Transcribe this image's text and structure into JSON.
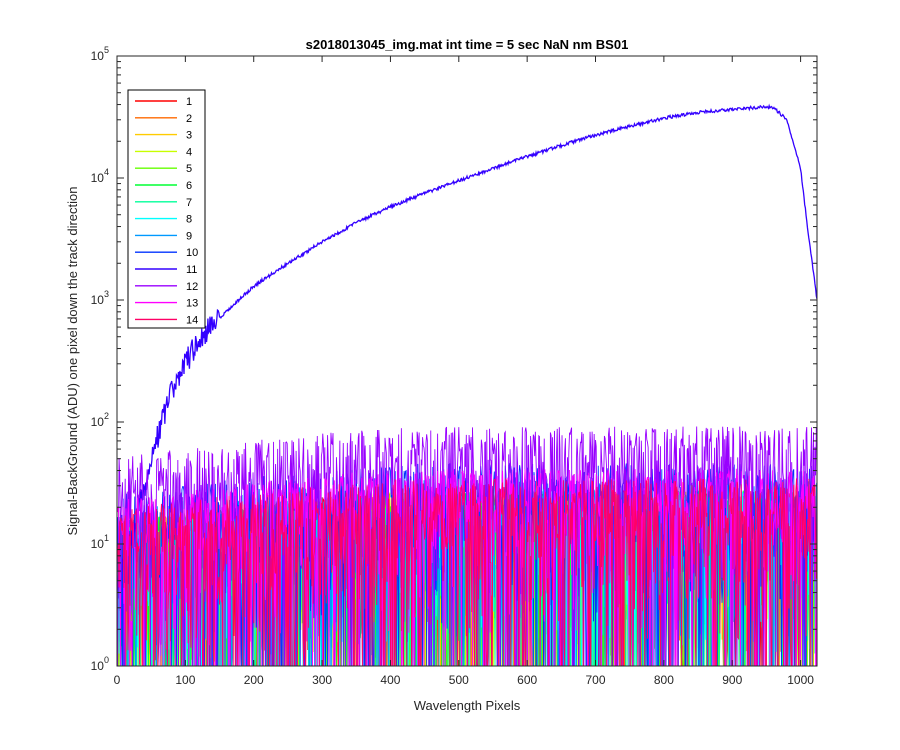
{
  "chart_data": {
    "type": "line",
    "title": "s2018013045_img.mat int time = 5 sec  NaN nm BS01",
    "xlabel": "Wavelength Pixels",
    "ylabel": "Signal-BackGround (ADU) one pixel down the track direction",
    "xlim": [
      0,
      1024
    ],
    "ylim": [
      1,
      100000
    ],
    "yscale": "log",
    "grid": false,
    "legend_position": "top-left",
    "x_ticks": [
      "0",
      "100",
      "200",
      "300",
      "400",
      "500",
      "600",
      "700",
      "800",
      "900",
      "1000"
    ],
    "y_ticks": [
      {
        "base": "10",
        "exp": "0"
      },
      {
        "base": "10",
        "exp": "1"
      },
      {
        "base": "10",
        "exp": "2"
      },
      {
        "base": "10",
        "exp": "3"
      },
      {
        "base": "10",
        "exp": "4"
      },
      {
        "base": "10",
        "exp": "5"
      }
    ],
    "series": [
      {
        "name": "1",
        "color": "#ff0000",
        "noise_level": 12
      },
      {
        "name": "2",
        "color": "#ff6a00",
        "noise_level": 12
      },
      {
        "name": "3",
        "color": "#ffcc00",
        "noise_level": 12
      },
      {
        "name": "4",
        "color": "#c8ff00",
        "noise_level": 12
      },
      {
        "name": "5",
        "color": "#66ff00",
        "noise_level": 12
      },
      {
        "name": "6",
        "color": "#00ff33",
        "noise_level": 12
      },
      {
        "name": "7",
        "color": "#00ff99",
        "noise_level": 12
      },
      {
        "name": "8",
        "color": "#00ffff",
        "noise_level": 12
      },
      {
        "name": "9",
        "color": "#0099ff",
        "noise_level": 15
      },
      {
        "name": "10",
        "color": "#0033ff",
        "noise_level": 20
      },
      {
        "name": "11",
        "color": "#3300ff",
        "profile": [
          [
            0,
            5
          ],
          [
            20,
            12
          ],
          [
            40,
            30
          ],
          [
            60,
            80
          ],
          [
            80,
            180
          ],
          [
            100,
            320
          ],
          [
            130,
            550
          ],
          [
            160,
            800
          ],
          [
            200,
            1300
          ],
          [
            250,
            2000
          ],
          [
            300,
            3000
          ],
          [
            350,
            4300
          ],
          [
            400,
            5800
          ],
          [
            450,
            7500
          ],
          [
            500,
            9500
          ],
          [
            550,
            12000
          ],
          [
            600,
            15000
          ],
          [
            650,
            18500
          ],
          [
            700,
            22500
          ],
          [
            750,
            26500
          ],
          [
            800,
            31000
          ],
          [
            850,
            34500
          ],
          [
            900,
            36500
          ],
          [
            940,
            38000
          ],
          [
            960,
            38000
          ],
          [
            980,
            30000
          ],
          [
            1000,
            12000
          ],
          [
            1010,
            4000
          ],
          [
            1024,
            1000
          ]
        ]
      },
      {
        "name": "12",
        "color": "#9900ff",
        "noise_level": 40
      },
      {
        "name": "13",
        "color": "#ff00ff",
        "noise_level": 18
      },
      {
        "name": "14",
        "color": "#ff0066",
        "noise_level": 15
      }
    ]
  }
}
